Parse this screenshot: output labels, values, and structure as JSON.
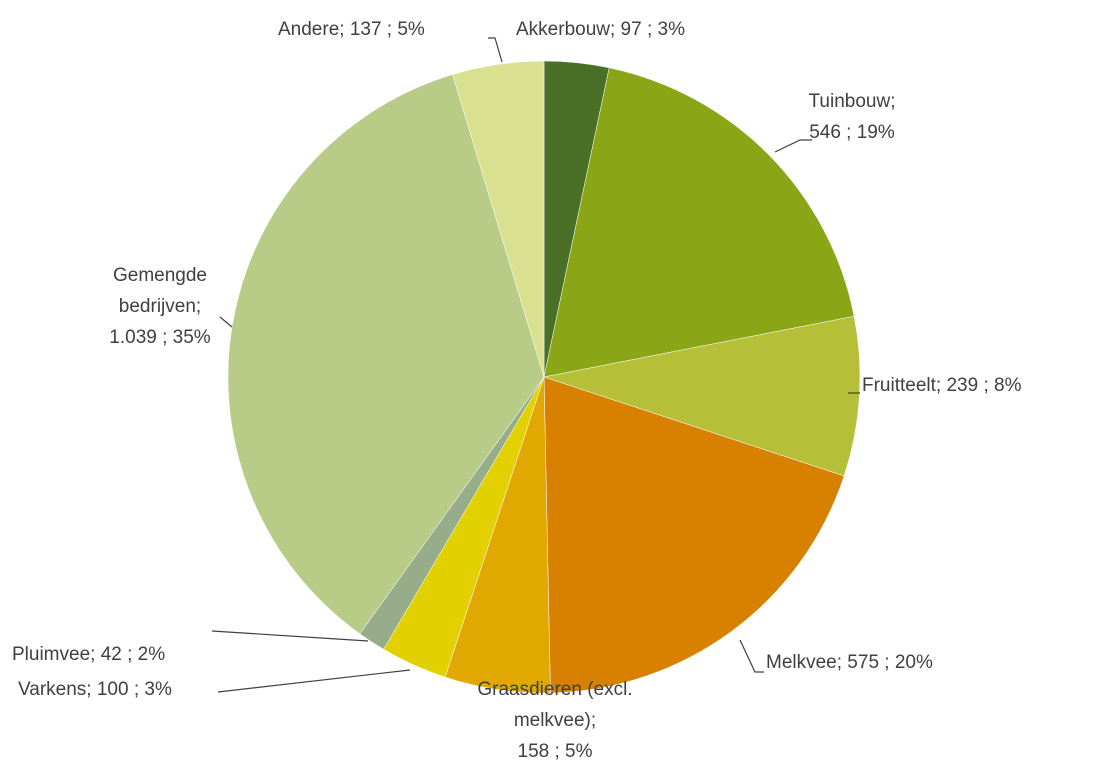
{
  "chart_data": {
    "type": "pie",
    "values": [
      97,
      546,
      239,
      575,
      158,
      100,
      42,
      1039,
      137
    ],
    "value_labels": [
      [
        "Akkerbouw;  97 ; 3%"
      ],
      [
        "Tuinbouw;",
        "546 ; 19%"
      ],
      [
        "Fruitteelt;  239 ; 8%"
      ],
      [
        "Melkvee;  575 ; 20%"
      ],
      [
        "Graasdieren (excl.",
        "melkvee);",
        "158 ; 5%"
      ],
      [
        "Varkens;  100 ; 3%"
      ],
      [
        "Pluimvee;  42 ; 2%"
      ],
      [
        "Gemengde",
        "bedrijven;",
        "1.039 ; 35%"
      ],
      [
        "Andere;  137 ; 5%"
      ]
    ],
    "colors": [
      "#4a7028",
      "#8aa516",
      "#b5c038",
      "#d88000",
      "#e0a800",
      "#e2d000",
      "#97ad8a",
      "#b8cc88",
      "#d9e08f"
    ]
  }
}
